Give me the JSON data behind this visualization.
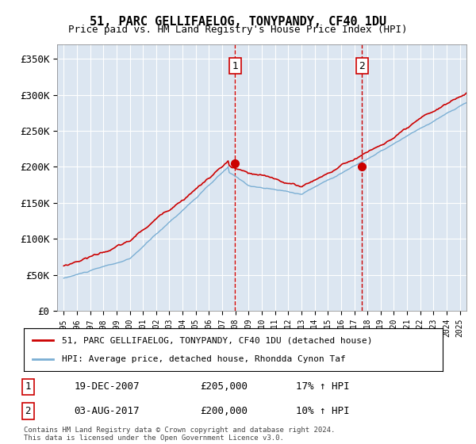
{
  "title": "51, PARC GELLIFAELOG, TONYPANDY, CF40 1DU",
  "subtitle": "Price paid vs. HM Land Registry's House Price Index (HPI)",
  "background_color": "#ffffff",
  "plot_bg_color": "#dce6f1",
  "grid_color": "#ffffff",
  "ylim": [
    0,
    370000
  ],
  "yticks": [
    0,
    50000,
    100000,
    150000,
    200000,
    250000,
    300000,
    350000
  ],
  "ytick_labels": [
    "£0",
    "£50K",
    "£100K",
    "£150K",
    "£200K",
    "£250K",
    "£300K",
    "£350K"
  ],
  "marker1": {
    "date_label": "19-DEC-2007",
    "price": 205000,
    "pct": "17%",
    "direction": "↑",
    "x": 2007.97
  },
  "marker2": {
    "date_label": "03-AUG-2017",
    "price": 200000,
    "pct": "10%",
    "direction": "↑",
    "x": 2017.59
  },
  "legend_line1": "51, PARC GELLIFAELOG, TONYPANDY, CF40 1DU (detached house)",
  "legend_line2": "HPI: Average price, detached house, Rhondda Cynon Taf",
  "footnote": "Contains HM Land Registry data © Crown copyright and database right 2024.\nThis data is licensed under the Open Government Licence v3.0.",
  "hpi_color": "#7bafd4",
  "price_color": "#cc0000",
  "marker_box_color": "#cc0000",
  "xlim_left": 1994.5,
  "xlim_right": 2025.5
}
